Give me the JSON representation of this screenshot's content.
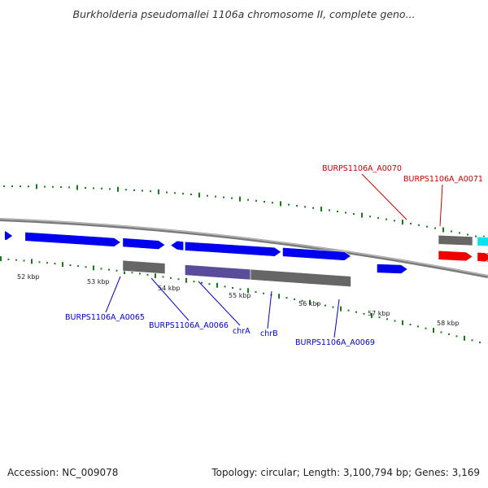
{
  "title": "Burkholderia pseudomallei 1106a chromosome II, complete geno...",
  "footer": {
    "accession": "Accession: NC_009078",
    "summary": "Topology: circular; Length: 3,100,794 bp; Genes: 3,169"
  },
  "colors": {
    "forward_gene": "#0000ee",
    "rna_or_other": "#ee0000",
    "pseudo": "#666666",
    "ticks": "#1a7a1a",
    "backbone": "#888888",
    "label_blue": "#0000cc",
    "label_red": "#cc0000",
    "cyan": "#00e5ee",
    "orange": "#ff8c00"
  },
  "scale": {
    "unit": "kbp",
    "labels": [
      "52 kbp",
      "53 kbp",
      "54 kbp",
      "55 kbp",
      "56 kbp",
      "57 kbp",
      "58 kbp"
    ]
  },
  "features": [
    {
      "id": "f1",
      "track": "outer",
      "start": 50.9,
      "end": 51.02,
      "strand": "+",
      "color": "forward_gene"
    },
    {
      "id": "f2",
      "track": "outer",
      "start": 51.2,
      "end": 52.6,
      "strand": "+",
      "color": "forward_gene"
    },
    {
      "id": "f3",
      "track": "outer",
      "start": 52.63,
      "end": 53.25,
      "strand": "+",
      "color": "forward_gene"
    },
    {
      "id": "f4",
      "track": "outer",
      "start": 53.33,
      "end": 53.52,
      "strand": "-",
      "color": "forward_gene"
    },
    {
      "id": "f5",
      "track": "outer",
      "start": 53.54,
      "end": 54.95,
      "strand": "+",
      "color": "forward_gene"
    },
    {
      "id": "f6",
      "track": "outer",
      "start": 54.97,
      "end": 55.97,
      "strand": "+",
      "color": "forward_gene"
    },
    {
      "id": "f7",
      "track": "outer_low",
      "start": 56.35,
      "end": 56.8,
      "strand": "+",
      "color": "forward_gene"
    },
    {
      "id": "g1",
      "track": "inner",
      "start": 52.63,
      "end": 53.25,
      "strand": "none",
      "color": "pseudo"
    },
    {
      "id": "g2",
      "track": "inner",
      "start": 53.54,
      "end": 54.5,
      "strand": "none",
      "color": "purple"
    },
    {
      "id": "g3",
      "track": "inner",
      "start": 54.5,
      "end": 55.97,
      "strand": "none",
      "color": "pseudo"
    },
    {
      "id": "g4",
      "track": "upper",
      "start": 57.25,
      "end": 57.75,
      "strand": "none",
      "color": "pseudo"
    },
    {
      "id": "c1",
      "track": "upper",
      "start": 57.82,
      "end": 58.1,
      "strand": "none",
      "color": "cyan"
    },
    {
      "id": "o1",
      "track": "upper",
      "start": 58.12,
      "end": 58.7,
      "strand": "none",
      "color": "orange"
    },
    {
      "id": "r1",
      "track": "red",
      "start": 57.25,
      "end": 57.75,
      "strand": "+",
      "color": "rna_or_other"
    },
    {
      "id": "r2",
      "track": "red",
      "start": 57.82,
      "end": 58.1,
      "strand": "+",
      "color": "rna_or_other"
    },
    {
      "id": "r3",
      "track": "red",
      "start": 58.12,
      "end": 58.7,
      "strand": "+",
      "color": "rna_or_other"
    }
  ],
  "gene_labels": [
    {
      "text": "BURPS1106A_A0065",
      "color": "label_blue"
    },
    {
      "text": "BURPS1106A_A0066",
      "color": "label_blue"
    },
    {
      "text": "chrA",
      "color": "label_blue"
    },
    {
      "text": "chrB",
      "color": "label_blue"
    },
    {
      "text": "BURPS1106A_A0069",
      "color": "label_blue"
    },
    {
      "text": "BURPS1106A_A0070",
      "color": "label_red"
    },
    {
      "text": "BURPS1106A_A0071",
      "color": "label_red"
    }
  ]
}
